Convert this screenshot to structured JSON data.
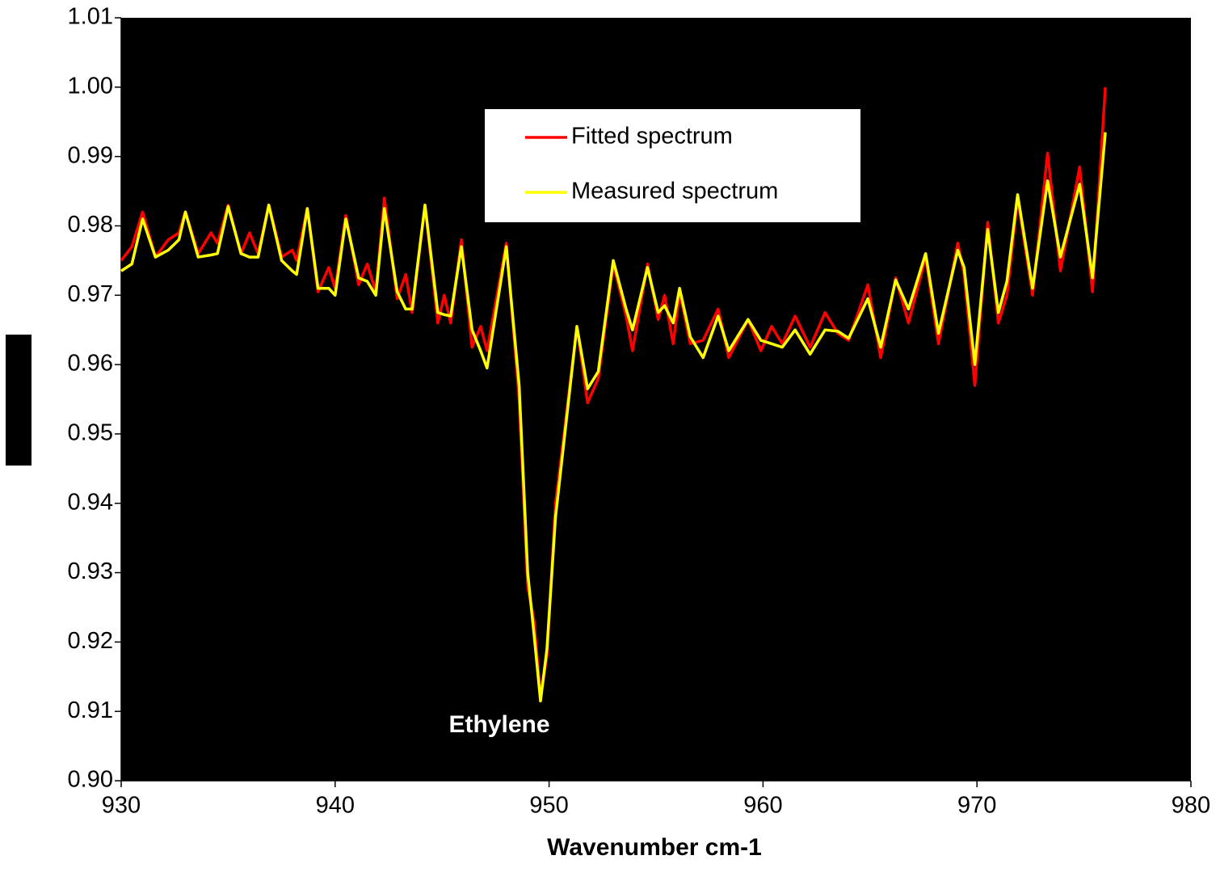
{
  "chart_data": {
    "type": "line",
    "x": [
      930,
      930.5,
      931,
      931.6,
      932.2,
      932.7,
      933,
      933.6,
      934.2,
      934.5,
      935,
      935.6,
      936,
      936.4,
      936.9,
      937.5,
      938,
      938.2,
      938.7,
      939.2,
      939.7,
      940,
      940.5,
      941.1,
      941.5,
      941.9,
      942.3,
      942.9,
      943.3,
      943.6,
      944.2,
      944.8,
      945.1,
      945.4,
      945.9,
      946.4,
      946.8,
      947.1,
      948,
      948.6,
      949,
      949.3,
      949.6,
      949.9,
      950.3,
      950.7,
      951.3,
      951.8,
      952.3,
      953,
      953.6,
      953.9,
      954.6,
      955.1,
      955.4,
      955.8,
      956.1,
      956.6,
      957.2,
      957.9,
      958.4,
      959.3,
      959.9,
      960.4,
      960.9,
      961.5,
      962.2,
      962.9,
      963.5,
      964,
      964.9,
      965.5,
      966.2,
      966.8,
      967.6,
      968.2,
      969.1,
      969.4,
      969.9,
      970.5,
      971,
      971.4,
      971.9,
      972.6,
      973.3,
      973.9,
      974.8,
      975.4,
      976
    ],
    "series": [
      {
        "name": "Fitted spectrum",
        "color": "#ff0000",
        "values": [
          0.975,
          0.977,
          0.982,
          0.9755,
          0.978,
          0.979,
          0.982,
          0.976,
          0.979,
          0.9775,
          0.983,
          0.976,
          0.979,
          0.976,
          0.983,
          0.9755,
          0.9765,
          0.975,
          0.9825,
          0.9705,
          0.974,
          0.971,
          0.9815,
          0.9715,
          0.9745,
          0.9705,
          0.984,
          0.9695,
          0.973,
          0.9675,
          0.983,
          0.966,
          0.97,
          0.966,
          0.978,
          0.9625,
          0.9655,
          0.962,
          0.9775,
          0.955,
          0.928,
          0.923,
          0.912,
          0.918,
          0.94,
          0.95,
          0.9655,
          0.9545,
          0.958,
          0.9745,
          0.967,
          0.962,
          0.9745,
          0.9665,
          0.97,
          0.963,
          0.9705,
          0.963,
          0.9635,
          0.968,
          0.961,
          0.9665,
          0.962,
          0.9655,
          0.963,
          0.967,
          0.9625,
          0.9675,
          0.9645,
          0.9635,
          0.9715,
          0.961,
          0.9725,
          0.966,
          0.9755,
          0.963,
          0.9775,
          0.973,
          0.957,
          0.9805,
          0.966,
          0.97,
          0.984,
          0.97,
          0.9905,
          0.9735,
          0.9885,
          0.9705,
          1.0
        ]
      },
      {
        "name": "Measured spectrum",
        "color": "#ffff00",
        "values": [
          0.9735,
          0.9745,
          0.981,
          0.9755,
          0.9765,
          0.978,
          0.982,
          0.9755,
          0.9758,
          0.976,
          0.9828,
          0.976,
          0.9755,
          0.9755,
          0.983,
          0.975,
          0.9735,
          0.973,
          0.9825,
          0.971,
          0.971,
          0.97,
          0.981,
          0.9725,
          0.972,
          0.97,
          0.9825,
          0.9705,
          0.968,
          0.968,
          0.983,
          0.9675,
          0.9672,
          0.967,
          0.977,
          0.965,
          0.962,
          0.9595,
          0.977,
          0.957,
          0.93,
          0.921,
          0.9115,
          0.919,
          0.938,
          0.949,
          0.9655,
          0.9565,
          0.959,
          0.975,
          0.968,
          0.965,
          0.974,
          0.9675,
          0.9685,
          0.966,
          0.971,
          0.964,
          0.961,
          0.967,
          0.962,
          0.9665,
          0.9635,
          0.963,
          0.9625,
          0.965,
          0.9615,
          0.965,
          0.9648,
          0.9638,
          0.9695,
          0.9625,
          0.9722,
          0.968,
          0.976,
          0.9645,
          0.9765,
          0.974,
          0.96,
          0.9795,
          0.9675,
          0.972,
          0.9845,
          0.971,
          0.9865,
          0.9755,
          0.986,
          0.9725,
          0.9935
        ]
      }
    ],
    "x_label": "Wavenumber cm-1",
    "annotation": "Ethylene",
    "xlim": [
      930,
      980
    ],
    "xticks": [
      930,
      940,
      950,
      960,
      970,
      980
    ],
    "ylim": [
      0.9,
      1.01
    ],
    "yticks": [
      {
        "value": 0.9,
        "label": "0.90"
      },
      0.91,
      0.92,
      0.93,
      0.94,
      0.95,
      0.96,
      0.97,
      0.98,
      0.99,
      {
        "value": 1.0,
        "label": "1.00"
      },
      1.01
    ]
  }
}
